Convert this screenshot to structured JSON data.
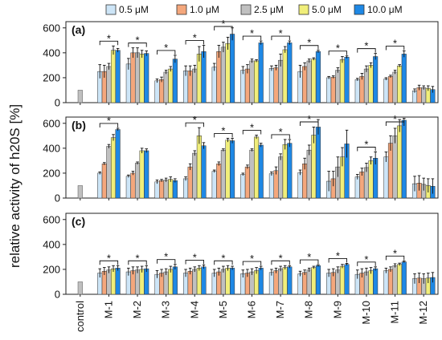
{
  "chart_data": {
    "type": "bar",
    "ylabel": "relative activity of h20S [%]",
    "ylim": [
      0,
      650
    ],
    "yticks": [
      0,
      200,
      400,
      600
    ],
    "categories": [
      "control",
      "M-1",
      "M-2",
      "M-3",
      "M-4",
      "M-5",
      "M-6",
      "M-7",
      "M-8",
      "M-9",
      "M-10",
      "M-11",
      "M-12"
    ],
    "control": {
      "value": 100,
      "color": "#c0c0c0"
    },
    "series_meta": [
      {
        "name": "0.5 μM",
        "color": "#cde5f7"
      },
      {
        "name": "1.0 μM",
        "color": "#f4a77c"
      },
      {
        "name": "2.5 μM",
        "color": "#c0c0c0"
      },
      {
        "name": "5.0 μM",
        "color": "#f0ee7a"
      },
      {
        "name": "10.0 μM",
        "color": "#1e88e5"
      }
    ],
    "panels": [
      {
        "label": "(a)",
        "values": [
          [
            250,
            250,
            290,
            420,
            420
          ],
          [
            310,
            400,
            400,
            390,
            395
          ],
          [
            175,
            185,
            245,
            270,
            350
          ],
          [
            255,
            255,
            270,
            390,
            410
          ],
          [
            285,
            410,
            445,
            475,
            550
          ],
          [
            260,
            270,
            335,
            335,
            480
          ],
          [
            275,
            280,
            340,
            425,
            480
          ],
          [
            250,
            290,
            335,
            350,
            410
          ],
          [
            200,
            205,
            260,
            345,
            365
          ],
          [
            185,
            210,
            270,
            300,
            370
          ],
          [
            190,
            210,
            245,
            295,
            390
          ],
          [
            95,
            120,
            120,
            115,
            105
          ]
        ],
        "errors": [
          [
            55,
            50,
            25,
            35,
            15
          ],
          [
            45,
            40,
            40,
            30,
            20
          ],
          [
            15,
            20,
            15,
            20,
            30
          ],
          [
            40,
            40,
            30,
            60,
            50
          ],
          [
            30,
            50,
            40,
            50,
            50
          ],
          [
            30,
            35,
            15,
            10,
            15
          ],
          [
            20,
            20,
            50,
            25,
            15
          ],
          [
            50,
            30,
            15,
            10,
            10
          ],
          [
            10,
            10,
            20,
            25,
            10
          ],
          [
            10,
            25,
            25,
            20,
            25
          ],
          [
            10,
            10,
            15,
            10,
            25
          ],
          [
            15,
            20,
            15,
            20,
            25
          ]
        ],
        "stars": [
          1,
          1,
          1,
          1,
          1,
          1,
          1,
          1,
          1,
          1,
          1,
          0
        ]
      },
      {
        "label": "(b)",
        "values": [
          [
            200,
            275,
            415,
            485,
            550
          ],
          [
            175,
            200,
            280,
            380,
            380
          ],
          [
            130,
            140,
            145,
            150,
            140
          ],
          [
            155,
            250,
            360,
            500,
            420
          ],
          [
            215,
            275,
            385,
            465,
            460
          ],
          [
            190,
            250,
            385,
            490,
            425
          ],
          [
            195,
            220,
            330,
            430,
            440
          ],
          [
            205,
            275,
            385,
            505,
            570
          ],
          [
            135,
            155,
            250,
            330,
            435
          ],
          [
            170,
            210,
            245,
            300,
            320
          ],
          [
            330,
            440,
            500,
            580,
            625
          ],
          [
            115,
            120,
            110,
            100,
            95
          ]
        ],
        "errors": [
          [
            10,
            10,
            15,
            25,
            10
          ],
          [
            10,
            15,
            10,
            20,
            15
          ],
          [
            15,
            10,
            15,
            20,
            15
          ],
          [
            15,
            25,
            20,
            65,
            25
          ],
          [
            10,
            15,
            10,
            15,
            20
          ],
          [
            10,
            15,
            10,
            15,
            15
          ],
          [
            15,
            30,
            25,
            40,
            30
          ],
          [
            20,
            45,
            40,
            65,
            60
          ],
          [
            80,
            60,
            80,
            75,
            110
          ],
          [
            20,
            30,
            35,
            30,
            50
          ],
          [
            40,
            60,
            60,
            50,
            15
          ],
          [
            60,
            60,
            50,
            55,
            60
          ]
        ],
        "stars": [
          1,
          0,
          0,
          1,
          1,
          1,
          1,
          1,
          0,
          1,
          1,
          0
        ]
      },
      {
        "label": "(c)",
        "values": [
          [
            170,
            185,
            195,
            205,
            210
          ],
          [
            180,
            190,
            195,
            200,
            205
          ],
          [
            160,
            170,
            180,
            200,
            220
          ],
          [
            170,
            185,
            200,
            210,
            220
          ],
          [
            170,
            180,
            200,
            210,
            210
          ],
          [
            165,
            170,
            180,
            190,
            210
          ],
          [
            175,
            190,
            205,
            215,
            220
          ],
          [
            165,
            175,
            195,
            215,
            230
          ],
          [
            170,
            175,
            195,
            225,
            240
          ],
          [
            160,
            170,
            180,
            190,
            205
          ],
          [
            190,
            200,
            230,
            240,
            260
          ],
          [
            125,
            130,
            125,
            130,
            135
          ]
        ],
        "errors": [
          [
            35,
            30,
            25,
            25,
            20
          ],
          [
            30,
            30,
            25,
            25,
            25
          ],
          [
            30,
            30,
            25,
            25,
            20
          ],
          [
            30,
            25,
            20,
            20,
            15
          ],
          [
            30,
            30,
            25,
            20,
            15
          ],
          [
            30,
            30,
            25,
            25,
            15
          ],
          [
            25,
            20,
            20,
            15,
            10
          ],
          [
            20,
            20,
            15,
            10,
            8
          ],
          [
            30,
            30,
            25,
            15,
            8
          ],
          [
            35,
            35,
            30,
            25,
            15
          ],
          [
            20,
            20,
            15,
            10,
            8
          ],
          [
            40,
            40,
            40,
            40,
            40
          ]
        ],
        "stars": [
          1,
          1,
          1,
          1,
          1,
          1,
          1,
          1,
          1,
          1,
          1,
          0
        ]
      }
    ],
    "grid": false,
    "legend_position": "top"
  }
}
